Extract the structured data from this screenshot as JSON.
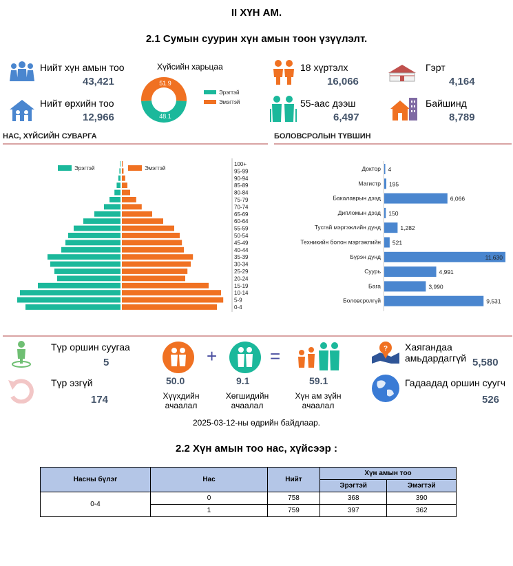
{
  "heading": "II ХҮН АМ.",
  "subheading": "2.1 Сумын суурин хүн амын тоон үзүүлэлт.",
  "stats": {
    "total_pop_label": "Нийт хүн амын тоо",
    "total_pop_value": "43,421",
    "households_label": "Нийт өрхийн тоо",
    "households_value": "12,966",
    "gender_ratio_label": "Хүйсийн харьцаа",
    "under18_label": "18 хүртэлх",
    "under18_value": "16,066",
    "over55_label": "55-аас дээш",
    "over55_value": "6,497",
    "ger_label": "Гэрт",
    "ger_value": "4,164",
    "house_label": "Байшинд",
    "house_value": "8,789"
  },
  "gender_donut": {
    "male_label": "Эрэгтэй",
    "female_label": "Эмэгтэй",
    "male_value": 48.1,
    "female_value": 51.9,
    "male_text": "48.1",
    "female_text": "51.9",
    "male_color": "#1bb89b",
    "female_color": "#f07122"
  },
  "sections": {
    "pyramid": "НАС, ХҮЙСИЙН СУВАРГА",
    "education": "БОЛОВСРОЛЫН ТҮВШИН"
  },
  "chart_data": [
    {
      "type": "bar",
      "orientation": "horizontal-pyramid",
      "categories": [
        "100+",
        "95-99",
        "90-94",
        "85-89",
        "80-84",
        "75-79",
        "70-74",
        "65-69",
        "60-64",
        "55-59",
        "50-54",
        "45-49",
        "40-44",
        "35-39",
        "30-34",
        "25-29",
        "20-24",
        "15-19",
        "10-14",
        "5-9",
        "0-4"
      ],
      "series": [
        {
          "name": "Эрэгтэй",
          "color": "#1bb89b",
          "values": [
            2,
            4,
            8,
            14,
            22,
            40,
            60,
            95,
            135,
            170,
            190,
            200,
            215,
            265,
            255,
            240,
            230,
            300,
            365,
            375,
            345
          ]
        },
        {
          "name": "Эмэгтэй",
          "color": "#f07122",
          "values": [
            3,
            6,
            12,
            20,
            30,
            52,
            72,
            110,
            150,
            190,
            210,
            218,
            225,
            258,
            250,
            238,
            230,
            315,
            360,
            368,
            345
          ]
        }
      ]
    },
    {
      "type": "bar",
      "orientation": "horizontal",
      "categories": [
        "Доктор",
        "Магистр",
        "Бакалаврын дээд",
        "Дипломын дээд",
        "Тусгай мэргэжлийн дунд",
        "Техникийн болон мэргэжлийн",
        "Бүрэн дунд",
        "Суурь",
        "Бага",
        "Боловсролгүй"
      ],
      "values": [
        4,
        195,
        6066,
        150,
        1282,
        521,
        11630,
        4991,
        3990,
        9531
      ],
      "labels": [
        "4",
        "195",
        "6,066",
        "150",
        "1,282",
        "521",
        "11,630",
        "4,991",
        "3,990",
        "9,531"
      ],
      "color": "#4a86cf"
    }
  ],
  "bottom": {
    "temp_resident_label": "Түр оршин суугаа",
    "temp_resident_value": "5",
    "temp_absent_label": "Түр эзгүй",
    "temp_absent_value": "174",
    "child_dep_value": "50.0",
    "child_dep_label1": "Хүүхдийн",
    "child_dep_label2": "ачаалал",
    "elder_dep_value": "9.1",
    "elder_dep_label1": "Хөгшидийн",
    "elder_dep_label2": "ачаалал",
    "total_dep_value": "59.1",
    "total_dep_label1": "Хүн ам зүйн",
    "total_dep_label2": "ачаалал",
    "plus": "+",
    "equals": "=",
    "no_address_label": "Хаягандаа амьдардаггүй",
    "no_address_value": "5,580",
    "abroad_label": "Гадаадад оршин суугч",
    "abroad_value": "526"
  },
  "date_note": "2025-03-12-ны өдрийн байдлаар.",
  "section22": "2.2 Хүн амын тоо нас, хүйсээр :",
  "table": {
    "h_group": "Насны бүлэг",
    "h_age": "Нас",
    "h_total": "Нийт",
    "h_pop": "Хүн амын тоо",
    "h_male": "Эрэгтэй",
    "h_female": "Эмэгтэй",
    "group": "0-4",
    "rows": [
      {
        "age": "0",
        "total": "758",
        "male": "368",
        "female": "390"
      },
      {
        "age": "1",
        "total": "759",
        "male": "397",
        "female": "362"
      }
    ]
  }
}
